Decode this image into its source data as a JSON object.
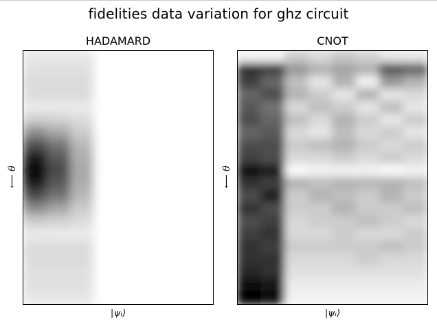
{
  "title": "fidelities data variation for ghz circuit",
  "chart_data": [
    {
      "type": "heatmap",
      "title": "HADAMARD",
      "xlabel": "|ψᵢ⟩",
      "ylabel": "⟵ θ",
      "colormap": "gray",
      "rows": 20,
      "cols": 8,
      "values": [
        [
          0.9,
          0.9,
          0.9,
          1,
          1,
          1,
          1,
          1
        ],
        [
          0.88,
          0.88,
          0.88,
          1,
          1,
          1,
          1,
          1
        ],
        [
          0.86,
          0.86,
          0.86,
          1,
          1,
          1,
          1,
          1
        ],
        [
          0.86,
          0.86,
          0.86,
          1,
          1,
          1,
          1,
          1
        ],
        [
          0.92,
          0.92,
          0.92,
          1,
          1,
          1,
          1,
          1
        ],
        [
          0.8,
          0.82,
          0.86,
          1,
          1,
          1,
          1,
          1
        ],
        [
          0.55,
          0.65,
          0.8,
          1,
          1,
          1,
          1,
          1
        ],
        [
          0.3,
          0.45,
          0.72,
          1,
          1,
          1,
          1,
          1
        ],
        [
          0.1,
          0.35,
          0.68,
          1,
          1,
          1,
          1,
          1
        ],
        [
          0.0,
          0.28,
          0.66,
          1,
          1,
          1,
          1,
          1
        ],
        [
          0.1,
          0.35,
          0.68,
          1,
          1,
          1,
          1,
          1
        ],
        [
          0.3,
          0.45,
          0.72,
          1,
          1,
          1,
          1,
          1
        ],
        [
          0.55,
          0.65,
          0.8,
          1,
          1,
          1,
          1,
          1
        ],
        [
          0.8,
          0.82,
          0.86,
          1,
          1,
          1,
          1,
          1
        ],
        [
          0.92,
          0.92,
          0.92,
          1,
          1,
          1,
          1,
          1
        ],
        [
          0.86,
          0.86,
          0.86,
          1,
          1,
          1,
          1,
          1
        ],
        [
          0.86,
          0.86,
          0.86,
          1,
          1,
          1,
          1,
          1
        ],
        [
          0.88,
          0.88,
          0.88,
          1,
          1,
          1,
          1,
          1
        ],
        [
          0.88,
          0.88,
          0.88,
          1,
          1,
          1,
          1,
          1
        ],
        [
          0.9,
          0.9,
          0.9,
          1,
          1,
          1,
          1,
          1
        ]
      ]
    },
    {
      "type": "heatmap",
      "title": "CNOT",
      "xlabel": "|ψᵢ⟩",
      "ylabel": "⟵ θ",
      "colormap": "gray",
      "rows": 20,
      "cols": 8,
      "values": [
        [
          0.95,
          0.95,
          0.8,
          0.85,
          0.78,
          0.82,
          0.9,
          0.9
        ],
        [
          0.2,
          0.25,
          0.6,
          0.7,
          0.65,
          0.7,
          0.35,
          0.4
        ],
        [
          0.25,
          0.4,
          0.75,
          0.9,
          0.7,
          0.95,
          0.6,
          0.7
        ],
        [
          0.4,
          0.3,
          0.7,
          0.8,
          0.9,
          0.7,
          0.9,
          0.85
        ],
        [
          0.35,
          0.45,
          0.85,
          0.75,
          0.8,
          0.9,
          0.75,
          0.9
        ],
        [
          0.3,
          0.4,
          0.75,
          0.85,
          0.7,
          0.8,
          0.9,
          0.8
        ],
        [
          0.4,
          0.35,
          0.85,
          0.9,
          0.75,
          0.85,
          0.8,
          0.9
        ],
        [
          0.3,
          0.3,
          0.8,
          0.75,
          0.7,
          0.8,
          0.85,
          0.8
        ],
        [
          0.25,
          0.3,
          0.85,
          0.85,
          0.8,
          0.85,
          0.8,
          0.85
        ],
        [
          0.05,
          0.1,
          0.98,
          0.95,
          0.95,
          0.95,
          0.98,
          0.95
        ],
        [
          0.2,
          0.25,
          0.7,
          0.75,
          0.7,
          0.72,
          0.7,
          0.75
        ],
        [
          0.3,
          0.1,
          0.8,
          0.7,
          0.75,
          0.8,
          0.7,
          0.8
        ],
        [
          0.2,
          0.3,
          0.8,
          0.8,
          0.7,
          0.8,
          0.8,
          0.75
        ],
        [
          0.3,
          0.25,
          0.85,
          0.8,
          0.8,
          0.75,
          0.8,
          0.85
        ],
        [
          0.25,
          0.2,
          0.85,
          0.85,
          0.8,
          0.85,
          0.85,
          0.8
        ],
        [
          0.2,
          0.25,
          0.8,
          0.8,
          0.8,
          0.8,
          0.75,
          0.8
        ],
        [
          0.2,
          0.2,
          0.85,
          0.85,
          0.85,
          0.8,
          0.85,
          0.85
        ],
        [
          0.15,
          0.2,
          0.88,
          0.88,
          0.88,
          0.88,
          0.88,
          0.88
        ],
        [
          0.05,
          0.08,
          0.92,
          0.92,
          0.92,
          0.92,
          0.92,
          0.92
        ],
        [
          0.0,
          0.05,
          0.95,
          0.95,
          0.95,
          0.95,
          0.95,
          0.95
        ]
      ]
    }
  ]
}
